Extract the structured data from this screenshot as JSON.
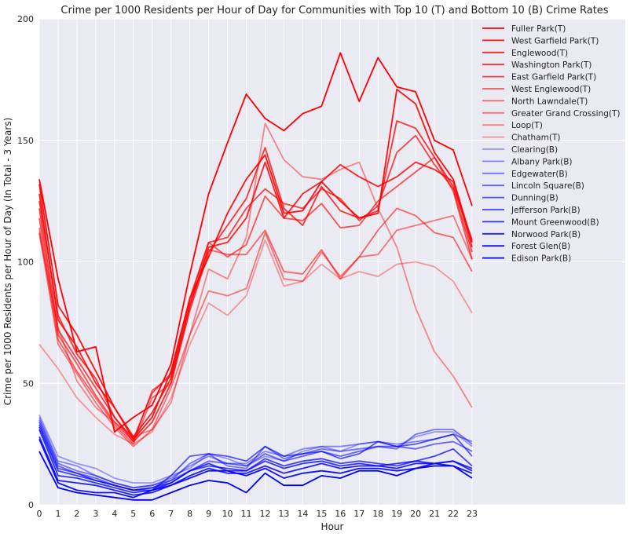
{
  "chart_data": {
    "type": "line",
    "title": "Crime per 1000 Residents per Hour of Day for Communities with Top 10 (T) and Bottom 10 (B) Crime Rates",
    "xlabel": "Hour",
    "ylabel": "Crime per 1000 Residents per Hour of Day (In Total - 3 Years)",
    "xlim": [
      0,
      23
    ],
    "ylim": [
      0,
      200
    ],
    "x": [
      0,
      1,
      2,
      3,
      4,
      5,
      6,
      7,
      8,
      9,
      10,
      11,
      12,
      13,
      14,
      15,
      16,
      17,
      18,
      19,
      20,
      21,
      22,
      23
    ],
    "x_ticks": [
      "0",
      "1",
      "2",
      "3",
      "4",
      "5",
      "6",
      "7",
      "8",
      "9",
      "10",
      "11",
      "12",
      "13",
      "14",
      "15",
      "16",
      "17",
      "18",
      "19",
      "20",
      "21",
      "22",
      "23"
    ],
    "y_ticks": [
      "0",
      "50",
      "100",
      "150",
      "200"
    ],
    "grid": true,
    "legend_position": "upper-right-outside",
    "colors": {
      "background": "#eaeaf2",
      "grid": "#ffffff",
      "top_color": "#ff0000",
      "bottom_color": "#0000ff"
    },
    "series": [
      {
        "name": "Fuller Park(T)",
        "group": "T",
        "alpha": 1.0,
        "values": [
          134,
          93,
          63,
          65,
          30,
          36,
          41,
          58,
          95,
          128,
          149,
          169,
          159,
          154,
          161,
          164,
          186,
          166,
          184,
          172,
          170,
          150,
          146,
          123
        ]
      },
      {
        "name": "West Garfield Park(T)",
        "group": "T",
        "alpha": 0.93,
        "values": [
          132,
          82,
          70,
          55,
          40,
          27,
          36,
          55,
          85,
          102,
          120,
          134,
          144,
          120,
          121,
          133,
          125,
          118,
          120,
          171,
          165,
          145,
          134,
          108
        ]
      },
      {
        "name": "Englewood(T)",
        "group": "T",
        "alpha": 0.86,
        "values": [
          128,
          76,
          65,
          50,
          40,
          28,
          38,
          52,
          82,
          106,
          108,
          118,
          141,
          118,
          128,
          133,
          140,
          135,
          131,
          135,
          141,
          138,
          133,
          106
        ]
      },
      {
        "name": "Washington Park(T)",
        "group": "T",
        "alpha": 0.79,
        "values": [
          125,
          78,
          62,
          52,
          36,
          26,
          34,
          50,
          80,
          104,
          115,
          126,
          147,
          122,
          115,
          131,
          121,
          118,
          121,
          158,
          155,
          143,
          131,
          109
        ]
      },
      {
        "name": "East Garfield Park(T)",
        "group": "T",
        "alpha": 0.72,
        "values": [
          122,
          72,
          60,
          48,
          36,
          27,
          46,
          54,
          85,
          108,
          110,
          122,
          130,
          124,
          122,
          130,
          126,
          117,
          123,
          145,
          152,
          140,
          130,
          104
        ]
      },
      {
        "name": "West Englewood(T)",
        "group": "T",
        "alpha": 0.65,
        "values": [
          118,
          70,
          58,
          45,
          34,
          26,
          47,
          53,
          84,
          108,
          102,
          107,
          127,
          118,
          117,
          124,
          114,
          115,
          125,
          131,
          137,
          143,
          129,
          101
        ]
      },
      {
        "name": "North Lawndale(T)",
        "group": "T",
        "alpha": 0.58,
        "values": [
          114,
          68,
          55,
          44,
          33,
          25,
          44,
          50,
          82,
          105,
          103,
          103,
          113,
          96,
          95,
          105,
          93,
          102,
          113,
          122,
          119,
          112,
          110,
          96
        ]
      },
      {
        "name": "Greater Grand Crossing(T)",
        "group": "T",
        "alpha": 0.51,
        "values": [
          112,
          66,
          54,
          42,
          32,
          24,
          31,
          48,
          70,
          88,
          86,
          89,
          112,
          93,
          92,
          104,
          94,
          102,
          103,
          113,
          115,
          117,
          119,
          101
        ]
      },
      {
        "name": "Loop(T)",
        "group": "T",
        "alpha": 0.44,
        "values": [
          112,
          73,
          51,
          40,
          34,
          28,
          31,
          42,
          70,
          97,
          93,
          110,
          157,
          142,
          135,
          134,
          138,
          141,
          122,
          106,
          81,
          63,
          53,
          40
        ]
      },
      {
        "name": "Chatham(T)",
        "group": "T",
        "alpha": 0.37,
        "values": [
          66,
          56,
          44,
          36,
          29,
          25,
          30,
          44,
          66,
          83,
          78,
          86,
          109,
          90,
          92,
          99,
          93,
          96,
          94,
          99,
          100,
          98,
          92,
          79
        ]
      },
      {
        "name": "Clearing(B)",
        "group": "B",
        "alpha": 0.37,
        "values": [
          37,
          20,
          17,
          15,
          11,
          9,
          9,
          12,
          15,
          21,
          19,
          16,
          20,
          18,
          22,
          24,
          22,
          25,
          26,
          24,
          28,
          30,
          30,
          24
        ]
      },
      {
        "name": "Albany Park(B)",
        "group": "B",
        "alpha": 0.44,
        "values": [
          36,
          18,
          16,
          12,
          9,
          7,
          8,
          11,
          16,
          20,
          17,
          17,
          22,
          20,
          23,
          24,
          24,
          25,
          26,
          25,
          26,
          27,
          29,
          26
        ]
      },
      {
        "name": "Edgewater(B)",
        "group": "B",
        "alpha": 0.51,
        "values": [
          35,
          17,
          14,
          12,
          9,
          7,
          8,
          10,
          17,
          21,
          16,
          15,
          24,
          19,
          21,
          23,
          22,
          23,
          24,
          23,
          29,
          31,
          31,
          25
        ]
      },
      {
        "name": "Lincoln Square(B)",
        "group": "B",
        "alpha": 0.58,
        "values": [
          34,
          16,
          13,
          11,
          8,
          6,
          7,
          10,
          14,
          18,
          17,
          16,
          21,
          18,
          20,
          22,
          20,
          22,
          24,
          24,
          23,
          25,
          26,
          22
        ]
      },
      {
        "name": "Dunning(B)",
        "group": "B",
        "alpha": 0.65,
        "values": [
          33,
          15,
          13,
          10,
          8,
          6,
          6,
          12,
          20,
          21,
          20,
          18,
          24,
          20,
          21,
          22,
          19,
          21,
          26,
          24,
          25,
          27,
          29,
          20
        ]
      },
      {
        "name": "Jefferson Park(B)",
        "group": "B",
        "alpha": 0.72,
        "values": [
          32,
          14,
          12,
          10,
          8,
          6,
          7,
          9,
          14,
          16,
          15,
          14,
          19,
          16,
          18,
          19,
          17,
          18,
          17,
          16,
          18,
          20,
          23,
          16
        ]
      },
      {
        "name": "Mount Greenwood(B)",
        "group": "B",
        "alpha": 0.79,
        "values": [
          31,
          12,
          11,
          9,
          7,
          5,
          6,
          9,
          14,
          17,
          14,
          14,
          18,
          15,
          17,
          18,
          16,
          17,
          16,
          17,
          18,
          17,
          18,
          15
        ]
      },
      {
        "name": "Norwood Park(B)",
        "group": "B",
        "alpha": 0.86,
        "values": [
          28,
          10,
          9,
          8,
          6,
          4,
          5,
          8,
          12,
          15,
          13,
          13,
          16,
          13,
          15,
          17,
          15,
          16,
          16,
          15,
          17,
          17,
          18,
          14
        ]
      },
      {
        "name": "Forest Glen(B)",
        "group": "B",
        "alpha": 0.93,
        "values": [
          27,
          9,
          6,
          5,
          5,
          3,
          6,
          8,
          11,
          14,
          14,
          12,
          15,
          11,
          13,
          14,
          13,
          15,
          15,
          14,
          15,
          17,
          16,
          13
        ]
      },
      {
        "name": "Edison Park(B)",
        "group": "B",
        "alpha": 1.0,
        "values": [
          22,
          7,
          5,
          4,
          3,
          2,
          2,
          5,
          8,
          10,
          9,
          5,
          13,
          8,
          8,
          12,
          11,
          14,
          14,
          12,
          15,
          16,
          16,
          11
        ]
      }
    ]
  }
}
